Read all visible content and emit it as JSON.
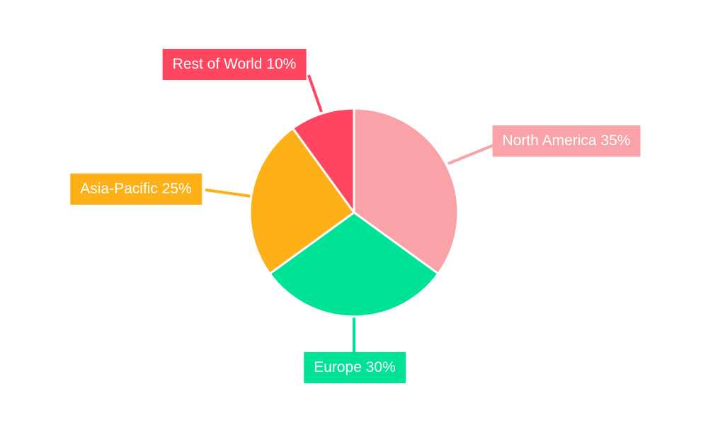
{
  "page": {
    "background_color": "#ffffff"
  },
  "chart_data": {
    "type": "pie",
    "start_angle_deg": 0,
    "direction": "clockwise",
    "labels_style": "callout-boxes-with-leader-lines",
    "slice_gap_color": "#ffffff",
    "slices": [
      {
        "name": "North America",
        "value": 35,
        "unit": "%",
        "color": "#F9A2A7",
        "label": "North America 35%"
      },
      {
        "name": "Europe",
        "value": 30,
        "unit": "%",
        "color": "#00E396",
        "label": "Europe 30%"
      },
      {
        "name": "Asia-Pacific",
        "value": 25,
        "unit": "%",
        "color": "#FEB019",
        "label": "Asia-Pacific 25%"
      },
      {
        "name": "Rest of World",
        "value": 10,
        "unit": "%",
        "color": "#FF4560",
        "label": "Rest of World 10%"
      }
    ]
  }
}
